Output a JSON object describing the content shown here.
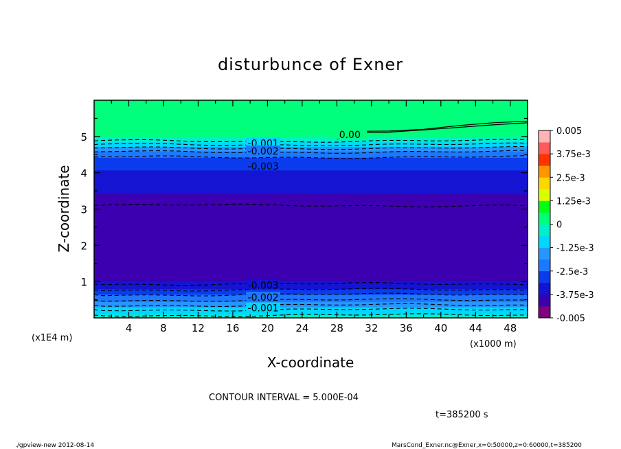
{
  "chart_data": {
    "type": "heatmap",
    "subtype": "filled-contour",
    "title": "disturbunce of Exner",
    "xlabel": "X-coordinate",
    "ylabel": "Z-coordinate",
    "x_scale_label": "(x1000 m)",
    "y_scale_label": "(x1E4 m)",
    "xlim": [
      0,
      50
    ],
    "ylim": [
      0,
      6
    ],
    "x_ticks": [
      "4",
      "8",
      "12",
      "16",
      "20",
      "24",
      "28",
      "32",
      "36",
      "40",
      "44",
      "48"
    ],
    "y_ticks": [
      "1",
      "2",
      "3",
      "4",
      "5"
    ],
    "colorbar": {
      "labels": [
        "0.005",
        "3.75e-3",
        "2.5e-3",
        "1.25e-3",
        "0",
        "-1.25e-3",
        "-2.5e-3",
        "-3.75e-3",
        "-0.005"
      ],
      "min": -0.005,
      "max": 0.005,
      "n_levels": 16,
      "colors": [
        "#7f007f",
        "#3c00b0",
        "#1414d2",
        "#0a3cee",
        "#1e78ff",
        "#2896ff",
        "#00d7ff",
        "#00f0c8",
        "#00ff7a",
        "#00ff14",
        "#d7ff00",
        "#ffd700",
        "#ff9600",
        "#ff3200",
        "#ff5a5a",
        "#ffb4b4"
      ]
    },
    "profile": {
      "z": [
        0.0,
        0.1,
        0.2,
        0.3,
        0.4,
        0.55,
        0.7,
        0.8,
        0.9,
        1.0,
        1.2,
        1.7,
        2.0,
        2.5,
        3.0,
        3.2,
        3.5,
        3.8,
        4.0,
        4.2,
        4.4,
        4.5,
        4.6,
        4.7,
        4.8,
        4.9,
        5.0,
        6.0
      ],
      "value": [
        -0.0002,
        -0.0006,
        -0.0009,
        -0.0013,
        -0.0017,
        -0.0022,
        -0.0027,
        -0.0031,
        -0.0034,
        -0.0037,
        -0.004,
        -0.0042,
        -0.0043,
        -0.0043,
        -0.0041,
        -0.0039,
        -0.0037,
        -0.0035,
        -0.0032,
        -0.003,
        -0.0026,
        -0.0023,
        -0.0019,
        -0.0014,
        -0.0009,
        -0.0004,
        0.0,
        0.0
      ]
    },
    "contour_labels": [
      {
        "text": "0.00",
        "x": 29.5,
        "z": 5.05
      },
      {
        "text": "-0.001",
        "x": 19.5,
        "z": 4.82
      },
      {
        "text": "-0.002",
        "x": 19.5,
        "z": 4.6
      },
      {
        "text": "-0.003",
        "x": 19.5,
        "z": 4.18
      },
      {
        "text": "-0.003",
        "x": 19.5,
        "z": 0.9
      },
      {
        "text": "-0.002",
        "x": 19.5,
        "z": 0.57
      },
      {
        "text": "-0.001",
        "x": 19.5,
        "z": 0.27
      }
    ],
    "contour_interval_text": "CONTOUR INTERVAL = 5.000E-04",
    "time_text": "t=385200 s"
  },
  "footer": {
    "left": "./gpview-new  2012-08-14",
    "right": "MarsCond_Exner.nc@Exner,x=0:50000,z=0:60000,t=385200"
  },
  "colors": {
    "background": "#ffffff",
    "frame": "#000000"
  }
}
